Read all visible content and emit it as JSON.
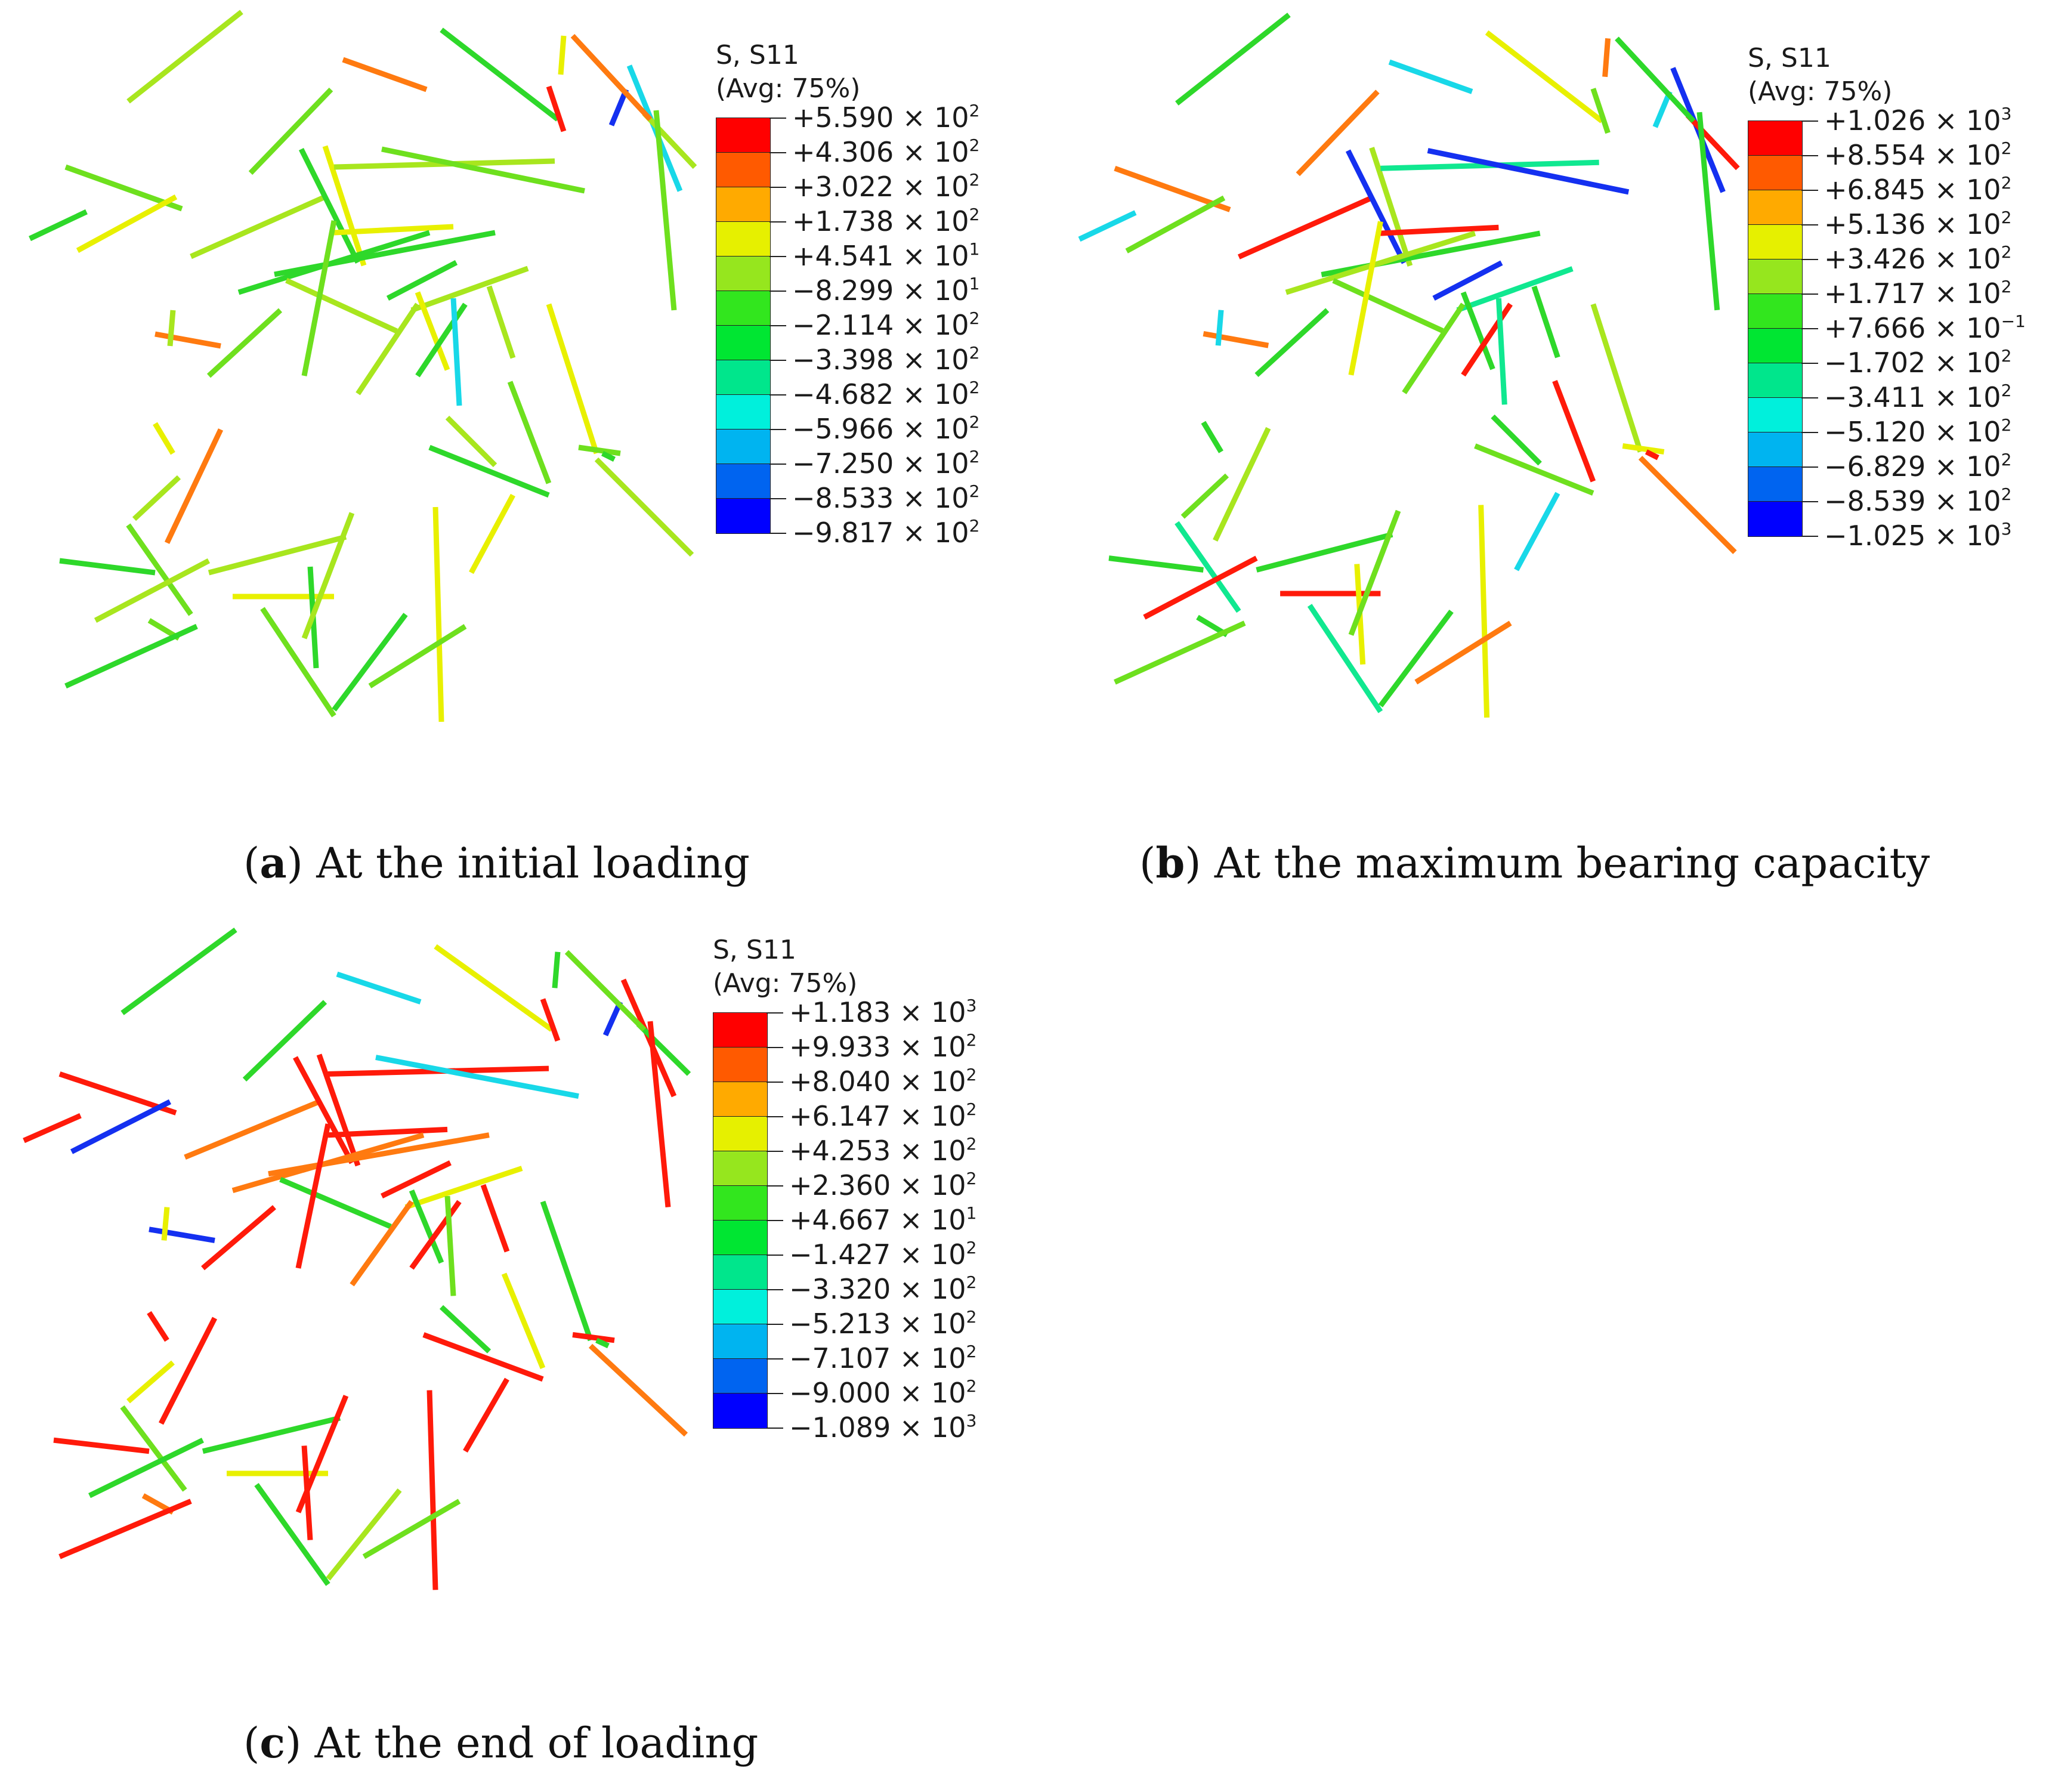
{
  "panels": [
    {
      "id": "a",
      "legend": {
        "title": "S, S11",
        "subtitle": "(Avg: 75%)",
        "entries": [
          {
            "mant": "+5.590",
            "exp": "2"
          },
          {
            "mant": "+4.306",
            "exp": "2"
          },
          {
            "mant": "+3.022",
            "exp": "2"
          },
          {
            "mant": "+1.738",
            "exp": "2"
          },
          {
            "mant": "+4.541",
            "exp": "1"
          },
          {
            "mant": "−8.299",
            "exp": "1"
          },
          {
            "mant": "−2.114",
            "exp": "2"
          },
          {
            "mant": "−3.398",
            "exp": "2"
          },
          {
            "mant": "−4.682",
            "exp": "2"
          },
          {
            "mant": "−5.966",
            "exp": "2"
          },
          {
            "mant": "−7.250",
            "exp": "2"
          },
          {
            "mant": "−8.533",
            "exp": "2"
          },
          {
            "mant": "−9.817",
            "exp": "2"
          }
        ]
      },
      "caption": {
        "letter": "a",
        "text": " At the initial loading"
      }
    },
    {
      "id": "b",
      "legend": {
        "title": "S, S11",
        "subtitle": "(Avg: 75%)",
        "entries": [
          {
            "mant": "+1.026",
            "exp": "3"
          },
          {
            "mant": "+8.554",
            "exp": "2"
          },
          {
            "mant": "+6.845",
            "exp": "2"
          },
          {
            "mant": "+5.136",
            "exp": "2"
          },
          {
            "mant": "+3.426",
            "exp": "2"
          },
          {
            "mant": "+1.717",
            "exp": "2"
          },
          {
            "mant": "+7.666",
            "exp": "−1"
          },
          {
            "mant": "−1.702",
            "exp": "2"
          },
          {
            "mant": "−3.411",
            "exp": "2"
          },
          {
            "mant": "−5.120",
            "exp": "2"
          },
          {
            "mant": "−6.829",
            "exp": "2"
          },
          {
            "mant": "−8.539",
            "exp": "2"
          },
          {
            "mant": "−1.025",
            "exp": "3"
          }
        ]
      },
      "caption": {
        "letter": "b",
        "text": " At the maximum bearing capacity"
      }
    },
    {
      "id": "c",
      "legend": {
        "title": "S, S11",
        "subtitle": "(Avg: 75%)",
        "entries": [
          {
            "mant": "+1.183",
            "exp": "3"
          },
          {
            "mant": "+9.933",
            "exp": "2"
          },
          {
            "mant": "+8.040",
            "exp": "2"
          },
          {
            "mant": "+6.147",
            "exp": "2"
          },
          {
            "mant": "+4.253",
            "exp": "2"
          },
          {
            "mant": "+2.360",
            "exp": "2"
          },
          {
            "mant": "+4.667",
            "exp": "1"
          },
          {
            "mant": "−1.427",
            "exp": "2"
          },
          {
            "mant": "−3.320",
            "exp": "2"
          },
          {
            "mant": "−5.213",
            "exp": "2"
          },
          {
            "mant": "−7.107",
            "exp": "2"
          },
          {
            "mant": "−9.000",
            "exp": "2"
          },
          {
            "mant": "−1.089",
            "exp": "3"
          }
        ]
      },
      "caption": {
        "letter": "c",
        "text": " At the end of loading"
      }
    }
  ],
  "colormap": [
    "#ff0000",
    "#ff5a00",
    "#ffaa00",
    "#e6f000",
    "#96e61e",
    "#32e61e",
    "#00e632",
    "#00e68c",
    "#00f0dc",
    "#00b4f0",
    "#0064f0",
    "#0000ff"
  ],
  "fiber_colors": {
    "a": [
      "green",
      "lime",
      "ygreen",
      "yellow",
      "ygreen",
      "green",
      "orange",
      "yellow",
      "lime",
      "green",
      "ygreen",
      "cyan",
      "blue",
      "ygreen",
      "lime",
      "green",
      "red",
      "yellow",
      "orange",
      "ygreen",
      "lime",
      "yellow",
      "green",
      "ygreen",
      "lime",
      "orange",
      "ygreen",
      "green",
      "yellow",
      "lime",
      "ygreen",
      "green",
      "cyan",
      "ygreen",
      "yellow",
      "lime",
      "green",
      "ygreen",
      "yellow",
      "lime",
      "ygreen",
      "green",
      "yellow",
      "ygreen",
      "lime",
      "green",
      "ygreen",
      "orange",
      "lime",
      "green",
      "ygreen",
      "yellow",
      "green",
      "lime",
      "ygreen",
      "green",
      "yellow",
      "lime"
    ],
    "b": [
      "cyan",
      "orange",
      "green",
      "lime",
      "red",
      "blue",
      "cyan",
      "ygreen",
      "orange",
      "green",
      "teal",
      "blue",
      "cyan",
      "red",
      "green",
      "yellow",
      "lime",
      "orange",
      "green",
      "teal",
      "blue",
      "red",
      "ygreen",
      "lime",
      "green",
      "orange",
      "cyan",
      "blue",
      "green",
      "yellow",
      "lime",
      "red",
      "teal",
      "green",
      "ygreen",
      "red",
      "lime",
      "green",
      "cyan",
      "yellow",
      "orange",
      "red",
      "green",
      "lime",
      "teal",
      "green",
      "red",
      "ygreen",
      "green",
      "lime",
      "green",
      "red",
      "yellow",
      "teal",
      "lime",
      "green",
      "yellow",
      "orange"
    ],
    "c": [
      "red",
      "red",
      "green",
      "blue",
      "orange",
      "red",
      "cyan",
      "red",
      "green",
      "orange",
      "yellow",
      "red",
      "blue",
      "green",
      "red",
      "yellow",
      "red",
      "green",
      "lime",
      "red",
      "cyan",
      "red",
      "orange",
      "green",
      "red",
      "blue",
      "yellow",
      "red",
      "green",
      "red",
      "orange",
      "red",
      "lime",
      "red",
      "green",
      "yellow",
      "red",
      "green",
      "red",
      "red",
      "orange",
      "green",
      "red",
      "yellow",
      "lime",
      "red",
      "green",
      "red",
      "orange",
      "red",
      "green",
      "yellow",
      "red",
      "green",
      "red",
      "ygreen",
      "red",
      "lime"
    ]
  }
}
